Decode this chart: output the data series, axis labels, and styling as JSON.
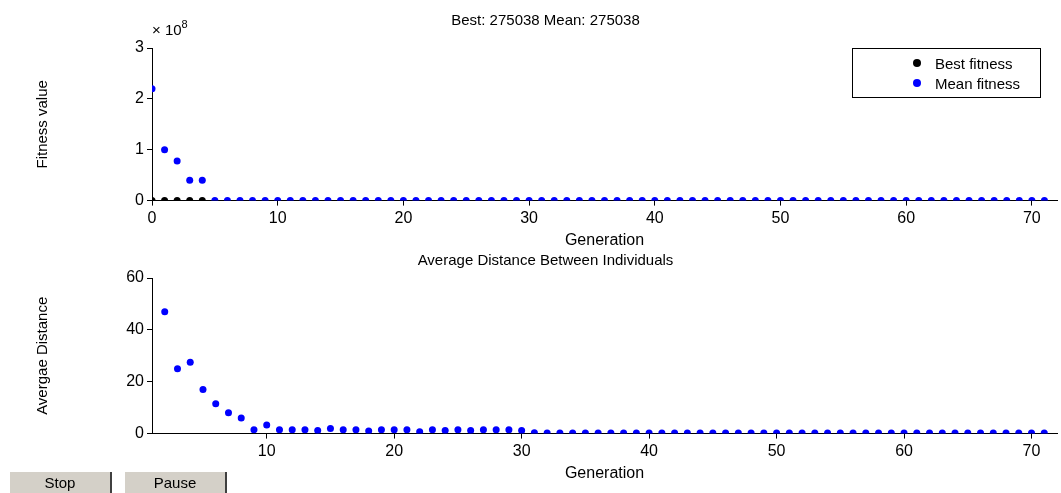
{
  "chart_data": [
    {
      "type": "scatter",
      "title": "Best: 275038 Mean: 275038",
      "xlabel": "Generation",
      "ylabel": "Fitness value",
      "annotations": [
        "× 10$^{8}$"
      ],
      "x": [
        0,
        1,
        2,
        3,
        4,
        5,
        6,
        7,
        8,
        9,
        10,
        11,
        12,
        13,
        14,
        15,
        16,
        17,
        18,
        19,
        20,
        21,
        22,
        23,
        24,
        25,
        26,
        27,
        28,
        29,
        30,
        31,
        32,
        33,
        34,
        35,
        36,
        37,
        38,
        39,
        40,
        41,
        42,
        43,
        44,
        45,
        46,
        47,
        48,
        49,
        50,
        51,
        52,
        53,
        54,
        55,
        56,
        57,
        58,
        59,
        60,
        61,
        62,
        63,
        64,
        65,
        66,
        67,
        68,
        69,
        70,
        71
      ],
      "series": [
        {
          "name": "Best fitness",
          "color": "#000000",
          "values": [
            0,
            0,
            0,
            0,
            0,
            null,
            null,
            null,
            null,
            null,
            null,
            null,
            null,
            null,
            null,
            null,
            null,
            null,
            null,
            null,
            null,
            null,
            null,
            null,
            null,
            null,
            null,
            null,
            null,
            null,
            null,
            null,
            null,
            null,
            null,
            null,
            null,
            null,
            null,
            null,
            null,
            null,
            null,
            null,
            null,
            null,
            null,
            null,
            null,
            null,
            null,
            null,
            null,
            null,
            null,
            null,
            null,
            null,
            null,
            null,
            null,
            null,
            null,
            null,
            null,
            null,
            null,
            null,
            null,
            null,
            null,
            null
          ]
        },
        {
          "name": "Mean fitness",
          "color": "#0000ff",
          "values": [
            2.2,
            1,
            0.78,
            0.4,
            0.4,
            0,
            0,
            0,
            0,
            0,
            0,
            0,
            0,
            0,
            0,
            0,
            0,
            0,
            0,
            0,
            0,
            0,
            0,
            0,
            0,
            0,
            0,
            0,
            0,
            0,
            0,
            0,
            0,
            0,
            0,
            0,
            0,
            0,
            0,
            0,
            0,
            0,
            0,
            0,
            0,
            0,
            0,
            0,
            0,
            0,
            0,
            0,
            0,
            0,
            0,
            0,
            0,
            0,
            0,
            0,
            0,
            0,
            0,
            0,
            0,
            0,
            0,
            0,
            0,
            0,
            0,
            0
          ]
        }
      ],
      "xlim": [
        0,
        72
      ],
      "xticks": [
        0,
        10,
        20,
        30,
        40,
        50,
        60,
        70
      ],
      "ylim": [
        0,
        3
      ],
      "yticks": [
        0,
        1,
        2,
        3
      ],
      "legend": "top right",
      "marker": "circle",
      "grid": false
    },
    {
      "type": "scatter",
      "title": "Average Distance Between Individuals",
      "xlabel": "Generation",
      "ylabel": "Avergae Distance",
      "annotations": [
        "Stop",
        "Pause"
      ],
      "x": [
        2,
        3,
        4,
        5,
        6,
        7,
        8,
        9,
        10,
        11,
        12,
        13,
        14,
        15,
        16,
        17,
        18,
        19,
        20,
        21,
        22,
        23,
        24,
        25,
        26,
        27,
        28,
        29,
        30,
        31,
        32,
        33,
        34,
        35,
        36,
        37,
        38,
        39,
        40,
        41,
        42,
        43,
        44,
        45,
        46,
        47,
        48,
        49,
        50,
        51,
        52,
        53,
        54,
        55,
        56,
        57,
        58,
        59,
        60,
        61,
        62,
        63,
        64,
        65,
        66,
        67,
        68,
        69,
        70,
        71
      ],
      "series": [
        {
          "color": "#0000ff",
          "values": [
            47,
            25,
            27.5,
            17,
            11.5,
            8,
            6,
            1.5,
            3.3,
            1.5,
            1.5,
            1.5,
            1.2,
            2,
            1.5,
            1.5,
            1,
            1.5,
            1.5,
            1.5,
            0.7,
            1.5,
            1.2,
            1.5,
            1.2,
            1.5,
            1.5,
            1.5,
            1.2,
            0.3,
            0.2,
            0.2,
            0.2,
            0.2,
            0.2,
            0.2,
            0.2,
            0.2,
            0.2,
            0.2,
            0.2,
            0.2,
            0.2,
            0.2,
            0.2,
            0.2,
            0.2,
            0.2,
            0.2,
            0.2,
            0.2,
            0.2,
            0.2,
            0.2,
            0.2,
            0.2,
            0.2,
            0.2,
            0.2,
            0.2,
            0.2,
            0.2,
            0.2,
            0.2,
            0.2,
            0.2,
            0.2,
            0.2,
            0.2,
            0.2
          ]
        }
      ],
      "xlim": [
        1,
        72
      ],
      "xticks": [
        10,
        20,
        30,
        40,
        50,
        60,
        70
      ],
      "ylim": [
        0,
        60
      ],
      "yticks": [
        0,
        20,
        40,
        60
      ],
      "marker": "circle",
      "grid": false
    }
  ]
}
